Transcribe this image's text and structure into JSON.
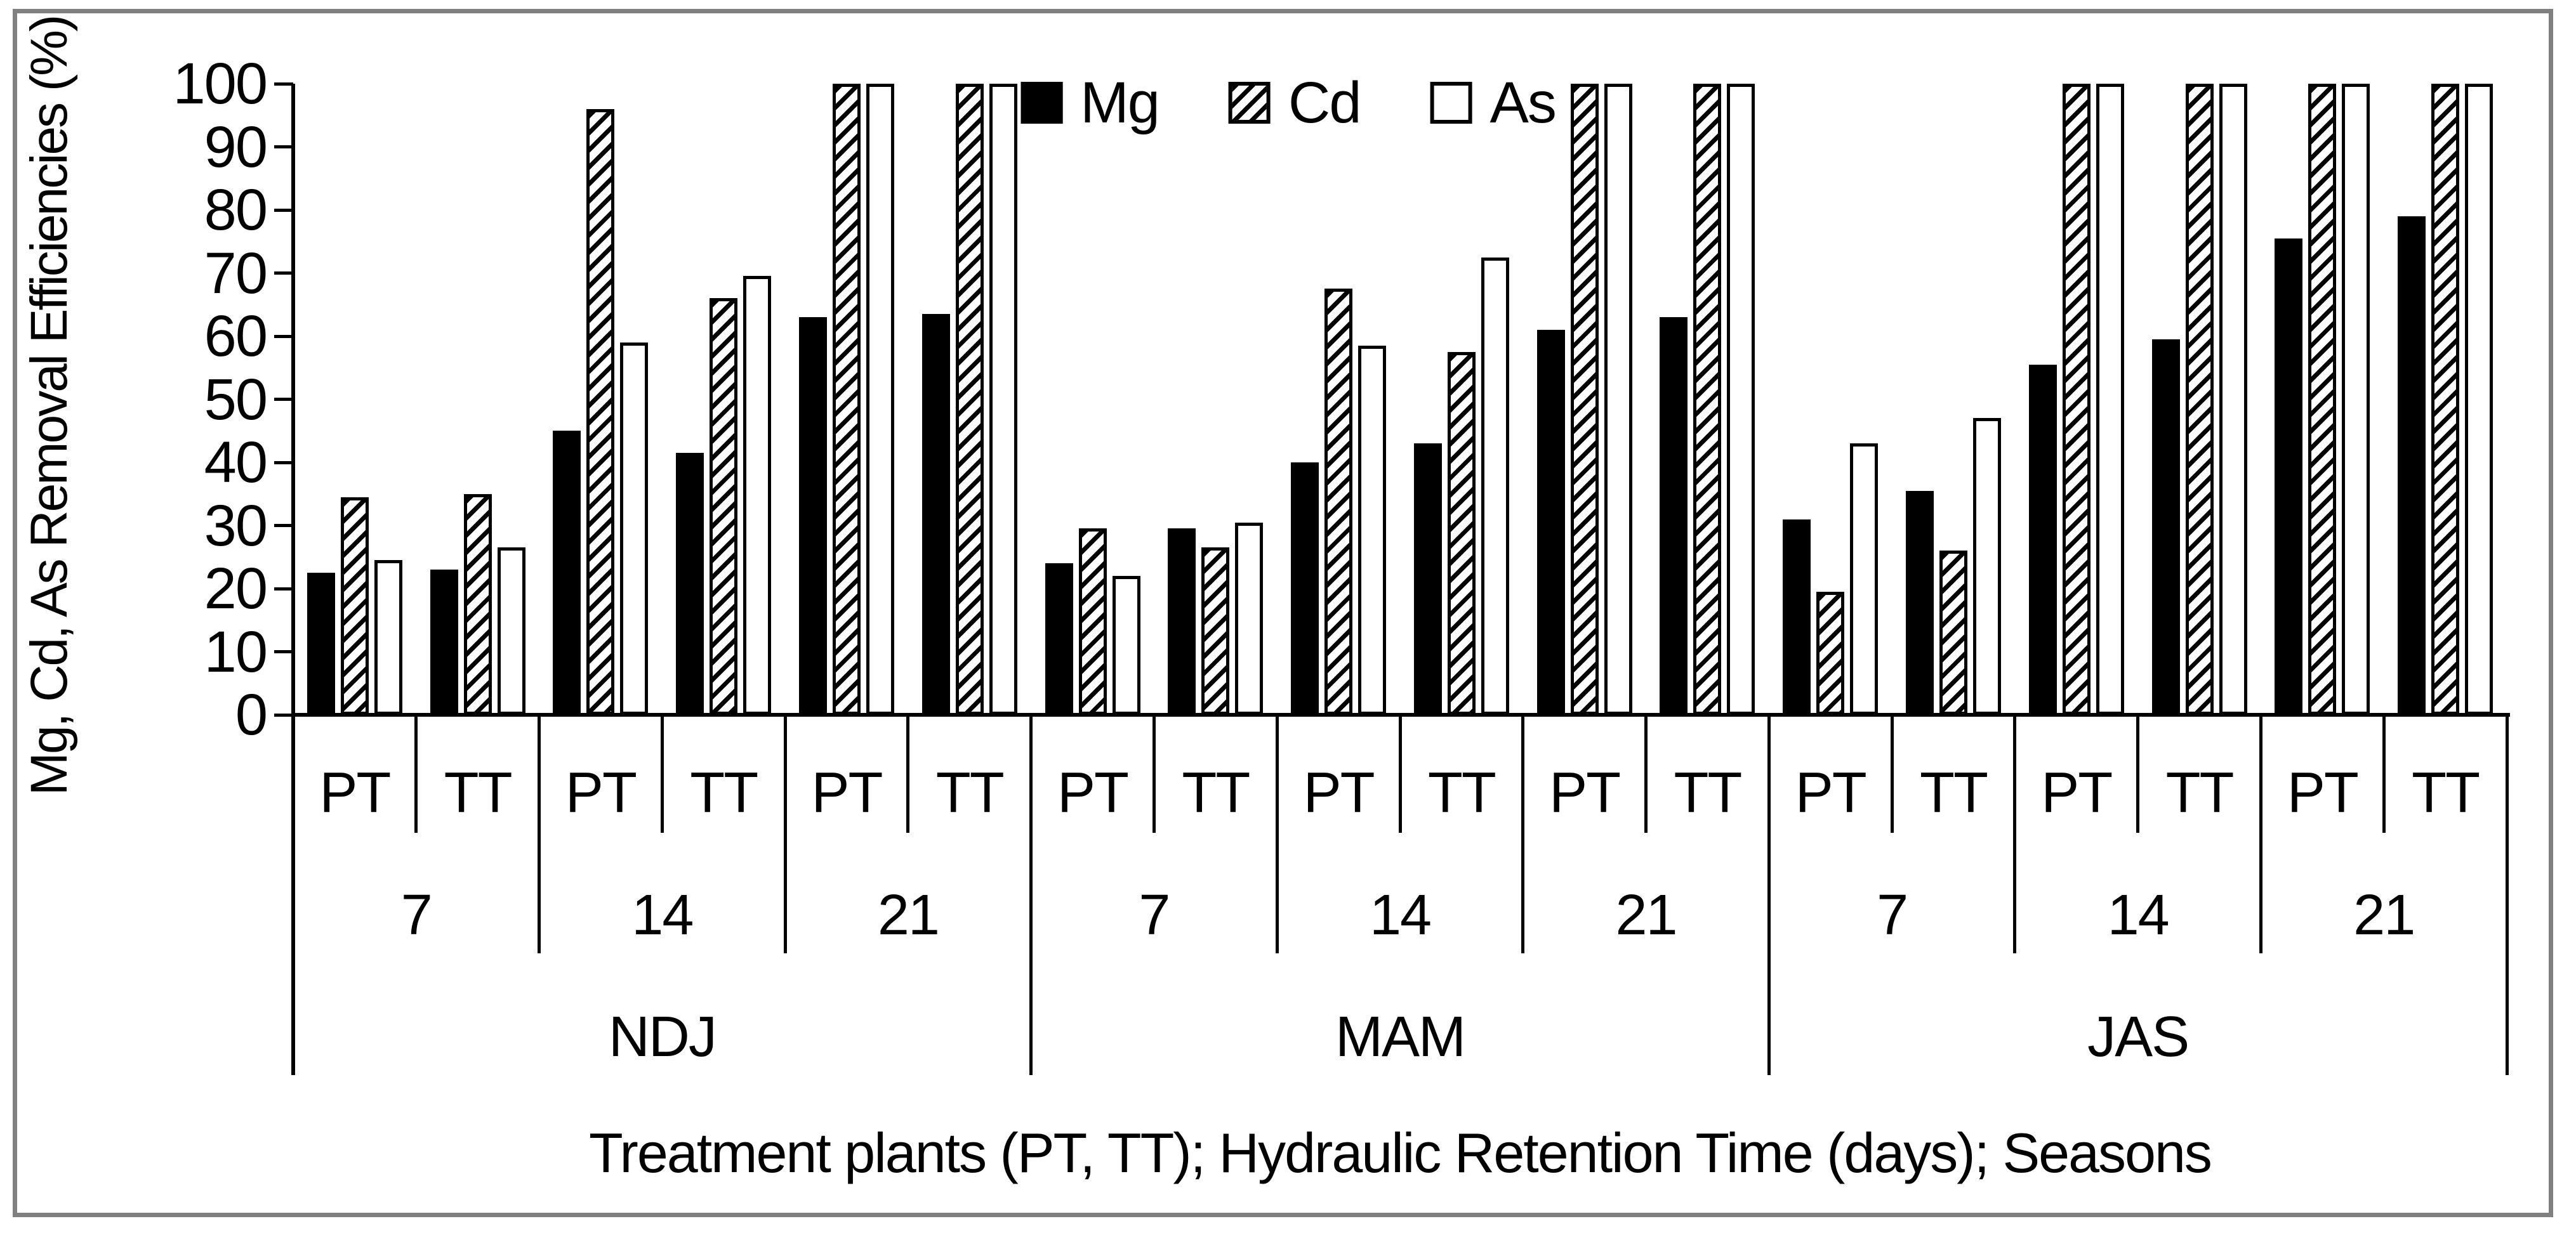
{
  "colors": {
    "foreground": "#000000",
    "background": "#ffffff",
    "frame_border": "#808080",
    "bar_solid": "#000000",
    "bar_white": "#ffffff"
  },
  "legend": {
    "items": [
      {
        "label": "Mg",
        "style": "solid-black"
      },
      {
        "label": "Cd",
        "style": "diagonal-hatch"
      },
      {
        "label": "As",
        "style": "white-outline"
      }
    ]
  },
  "chart_data": {
    "type": "bar",
    "title": "",
    "ylabel": "Mg, Cd, As Removal Efficiencies (%)",
    "xlabel": "Treatment plants (PT, TT); Hydraulic Retention Time (days); Seasons",
    "ylim": [
      0,
      100
    ],
    "ytick_step": 10,
    "yticks": [
      0,
      10,
      20,
      30,
      40,
      50,
      60,
      70,
      80,
      90,
      100
    ],
    "grid": false,
    "legend_position": "top-center",
    "series_names": [
      "Mg",
      "Cd",
      "As"
    ],
    "series_styles": {
      "Mg": "solid-black",
      "Cd": "diagonal-hatch",
      "As": "white-outline"
    },
    "seasons": [
      {
        "label": "NDJ",
        "hrt_groups": [
          {
            "label": "7",
            "plants": [
              {
                "label": "PT",
                "values": {
                  "Mg": 22.5,
                  "Cd": 34.5,
                  "As": 24.5
                }
              },
              {
                "label": "TT",
                "values": {
                  "Mg": 23,
                  "Cd": 35,
                  "As": 26.5
                }
              }
            ]
          },
          {
            "label": "14",
            "plants": [
              {
                "label": "PT",
                "values": {
                  "Mg": 45,
                  "Cd": 96,
                  "As": 59
                }
              },
              {
                "label": "TT",
                "values": {
                  "Mg": 41.5,
                  "Cd": 66,
                  "As": 69.5
                }
              }
            ]
          },
          {
            "label": "21",
            "plants": [
              {
                "label": "PT",
                "values": {
                  "Mg": 63,
                  "Cd": 100,
                  "As": 100
                }
              },
              {
                "label": "TT",
                "values": {
                  "Mg": 63.5,
                  "Cd": 100,
                  "As": 100
                }
              }
            ]
          }
        ]
      },
      {
        "label": "MAM",
        "hrt_groups": [
          {
            "label": "7",
            "plants": [
              {
                "label": "PT",
                "values": {
                  "Mg": 24,
                  "Cd": 29.5,
                  "As": 22
                }
              },
              {
                "label": "TT",
                "values": {
                  "Mg": 29.5,
                  "Cd": 26.5,
                  "As": 30.5
                }
              }
            ]
          },
          {
            "label": "14",
            "plants": [
              {
                "label": "PT",
                "values": {
                  "Mg": 40,
                  "Cd": 67.5,
                  "As": 58.5
                }
              },
              {
                "label": "TT",
                "values": {
                  "Mg": 43,
                  "Cd": 57.5,
                  "As": 72.5
                }
              }
            ]
          },
          {
            "label": "21",
            "plants": [
              {
                "label": "PT",
                "values": {
                  "Mg": 61,
                  "Cd": 100,
                  "As": 100
                }
              },
              {
                "label": "TT",
                "values": {
                  "Mg": 63,
                  "Cd": 100,
                  "As": 100
                }
              }
            ]
          }
        ]
      },
      {
        "label": "JAS",
        "hrt_groups": [
          {
            "label": "7",
            "plants": [
              {
                "label": "PT",
                "values": {
                  "Mg": 31,
                  "Cd": 19.5,
                  "As": 43
                }
              },
              {
                "label": "TT",
                "values": {
                  "Mg": 35.5,
                  "Cd": 26,
                  "As": 47
                }
              }
            ]
          },
          {
            "label": "14",
            "plants": [
              {
                "label": "PT",
                "values": {
                  "Mg": 55.5,
                  "Cd": 100,
                  "As": 100
                }
              },
              {
                "label": "TT",
                "values": {
                  "Mg": 59.5,
                  "Cd": 100,
                  "As": 100
                }
              }
            ]
          },
          {
            "label": "21",
            "plants": [
              {
                "label": "PT",
                "values": {
                  "Mg": 75.5,
                  "Cd": 100,
                  "As": 100
                }
              },
              {
                "label": "TT",
                "values": {
                  "Mg": 79,
                  "Cd": 100,
                  "As": 100
                }
              }
            ]
          }
        ]
      }
    ]
  }
}
